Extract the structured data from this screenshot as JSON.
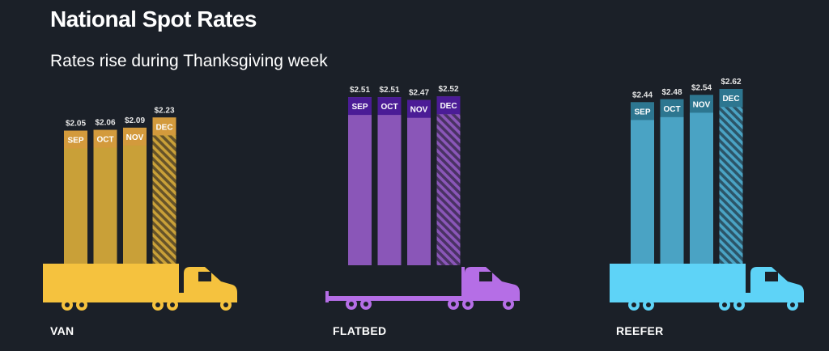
{
  "header": {
    "title": "National Spot Rates",
    "subtitle": "Rates rise during Thanksgiving week"
  },
  "chart_data": {
    "type": "bar",
    "title": "National Spot Rates",
    "subtitle": "Rates rise during Thanksgiving week",
    "categories": [
      "SEP",
      "OCT",
      "NOV",
      "DEC"
    ],
    "value_prefix": "$",
    "hatched_category": "DEC",
    "groups": [
      {
        "name": "VAN",
        "color": "#c9a038",
        "label_color": "#d39a3c",
        "truck_color": "#f5c23e",
        "truck_type": "van",
        "values": [
          2.05,
          2.06,
          2.09,
          2.23
        ]
      },
      {
        "name": "FLATBED",
        "color": "#8a56b8",
        "label_color": "#4b1c96",
        "truck_color": "#b56ee6",
        "truck_type": "flatbed",
        "values": [
          2.51,
          2.51,
          2.47,
          2.52
        ]
      },
      {
        "name": "REEFER",
        "color": "#4aa3c4",
        "label_color": "#2d7690",
        "truck_color": "#5ed3f7",
        "truck_type": "reefer",
        "values": [
          2.44,
          2.48,
          2.54,
          2.62
        ]
      }
    ]
  }
}
